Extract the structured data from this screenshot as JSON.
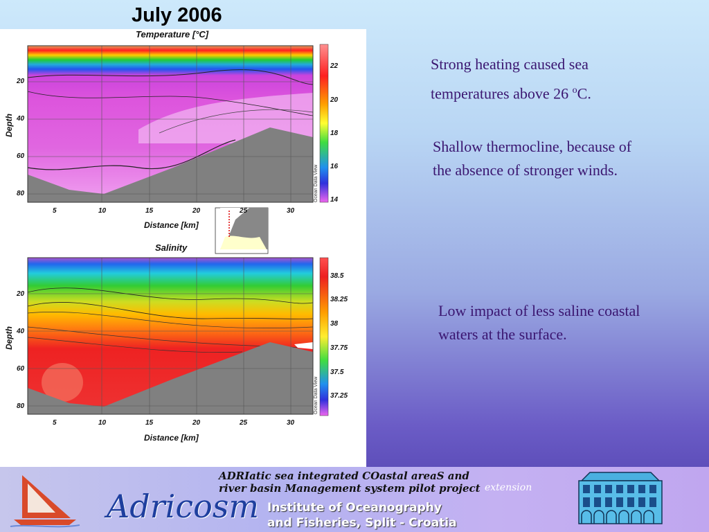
{
  "slide": {
    "title": "July 2006"
  },
  "temperature_plot": {
    "title": "Temperature  [°C]",
    "ylabel": "Depth",
    "xlabel": "Distance [km]",
    "yticks": [
      "20",
      "40",
      "60",
      "80"
    ],
    "xticks": [
      "5",
      "10",
      "15",
      "20",
      "25",
      "30"
    ],
    "colorbar_ticks": [
      "22",
      "20",
      "18",
      "16",
      "14"
    ],
    "odv": "Ocean Data View"
  },
  "salinity_plot": {
    "title": "Salinity",
    "ylabel": "Depth",
    "xlabel": "Distance [km]",
    "yticks": [
      "20",
      "40",
      "60",
      "80"
    ],
    "xticks": [
      "5",
      "10",
      "15",
      "20",
      "25",
      "30"
    ],
    "colorbar_ticks": [
      "38.5",
      "38.25",
      "38",
      "37.75",
      "37.5",
      "37.25"
    ],
    "odv": "Ocean Data View"
  },
  "notes": {
    "n1_line1": "Strong heating caused sea",
    "n1_line2_pre": "temperatures above 26 ",
    "n1_sup": "o",
    "n1_line2_post": "C.",
    "n2_line1": "Shallow thermocline, because of",
    "n2_line2": "the absence of stronger winds.",
    "n3_line1": "Low impact of less saline coastal",
    "n3_line2": "waters at the surface."
  },
  "banner": {
    "line1": "ADRIatic sea integrated COastal areaS and",
    "line2": "river basin Management system pilot project",
    "extension": "extension",
    "logo": "Adricosm",
    "inst1": "Institute of Oceanography",
    "inst2": "and Fisheries, Split - Croatia"
  },
  "colors": {
    "text_purple": "#3a1570",
    "seabed_gray": "#808080",
    "logo_blue": "#1e3f9e"
  }
}
